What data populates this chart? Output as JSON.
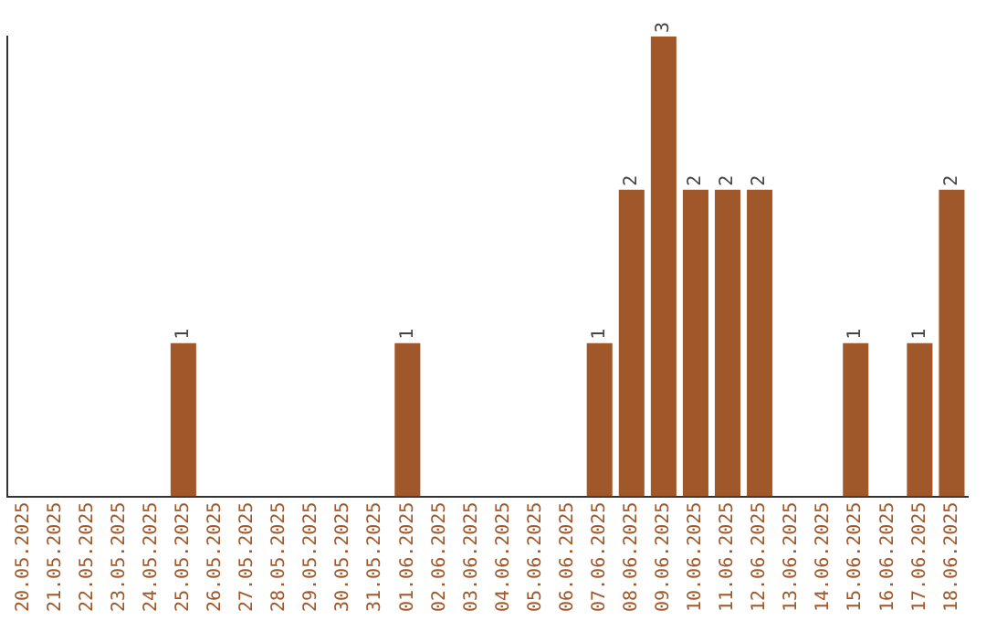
{
  "chart_data": {
    "type": "bar",
    "categories": [
      "20.05.2025",
      "21.05.2025",
      "22.05.2025",
      "23.05.2025",
      "24.05.2025",
      "25.05.2025",
      "26.05.2025",
      "27.05.2025",
      "28.05.2025",
      "29.05.2025",
      "30.05.2025",
      "31.05.2025",
      "01.06.2025",
      "02.06.2025",
      "03.06.2025",
      "04.06.2025",
      "05.06.2025",
      "06.06.2025",
      "07.06.2025",
      "08.06.2025",
      "09.06.2025",
      "10.06.2025",
      "11.06.2025",
      "12.06.2025",
      "13.06.2025",
      "14.06.2025",
      "15.06.2025",
      "16.06.2025",
      "17.06.2025",
      "18.06.2025"
    ],
    "values": [
      0,
      0,
      0,
      0,
      0,
      1,
      0,
      0,
      0,
      0,
      0,
      0,
      1,
      0,
      0,
      0,
      0,
      0,
      1,
      2,
      3,
      2,
      2,
      2,
      0,
      0,
      1,
      0,
      1,
      2
    ],
    "value_labels": [
      null,
      null,
      null,
      null,
      null,
      "1",
      null,
      null,
      null,
      null,
      null,
      null,
      "1",
      null,
      null,
      null,
      null,
      null,
      "1",
      "2",
      "3",
      "2",
      "2",
      "2",
      null,
      null,
      "1",
      null,
      "1",
      "2"
    ],
    "color": "#a0582a",
    "grid": false,
    "legend": false,
    "tick_labels": "x"
  }
}
